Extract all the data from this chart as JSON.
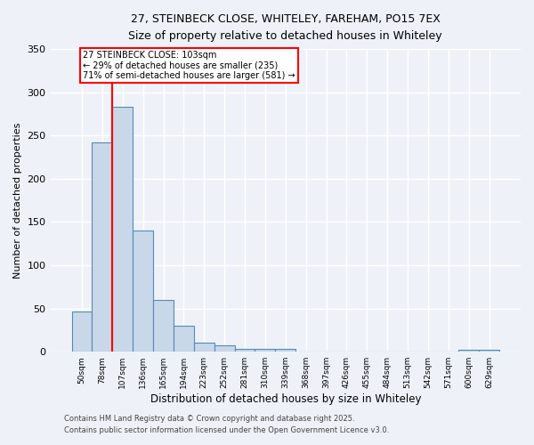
{
  "title_line1": "27, STEINBECK CLOSE, WHITELEY, FAREHAM, PO15 7EX",
  "title_line2": "Size of property relative to detached houses in Whiteley",
  "xlabel": "Distribution of detached houses by size in Whiteley",
  "ylabel": "Number of detached properties",
  "bar_labels": [
    "50sqm",
    "78sqm",
    "107sqm",
    "136sqm",
    "165sqm",
    "194sqm",
    "223sqm",
    "252sqm",
    "281sqm",
    "310sqm",
    "339sqm",
    "368sqm",
    "397sqm",
    "426sqm",
    "455sqm",
    "484sqm",
    "513sqm",
    "542sqm",
    "571sqm",
    "600sqm",
    "629sqm"
  ],
  "bar_values": [
    47,
    242,
    283,
    140,
    60,
    30,
    10,
    7,
    3,
    3,
    3,
    0,
    0,
    0,
    0,
    0,
    0,
    0,
    0,
    2,
    2
  ],
  "bar_color": "#c8d8e8",
  "bar_edge_color": "#5588bb",
  "red_line_x": 2,
  "annotation_text": "27 STEINBECK CLOSE: 103sqm\n← 29% of detached houses are smaller (235)\n71% of semi-detached houses are larger (581) →",
  "annotation_box_color": "white",
  "annotation_box_edge": "red",
  "vline_color": "red",
  "ylim": [
    0,
    350
  ],
  "yticks": [
    0,
    50,
    100,
    150,
    200,
    250,
    300,
    350
  ],
  "background_color": "#eef2f8",
  "grid_color": "white",
  "footer_line1": "Contains HM Land Registry data © Crown copyright and database right 2025.",
  "footer_line2": "Contains public sector information licensed under the Open Government Licence v3.0."
}
